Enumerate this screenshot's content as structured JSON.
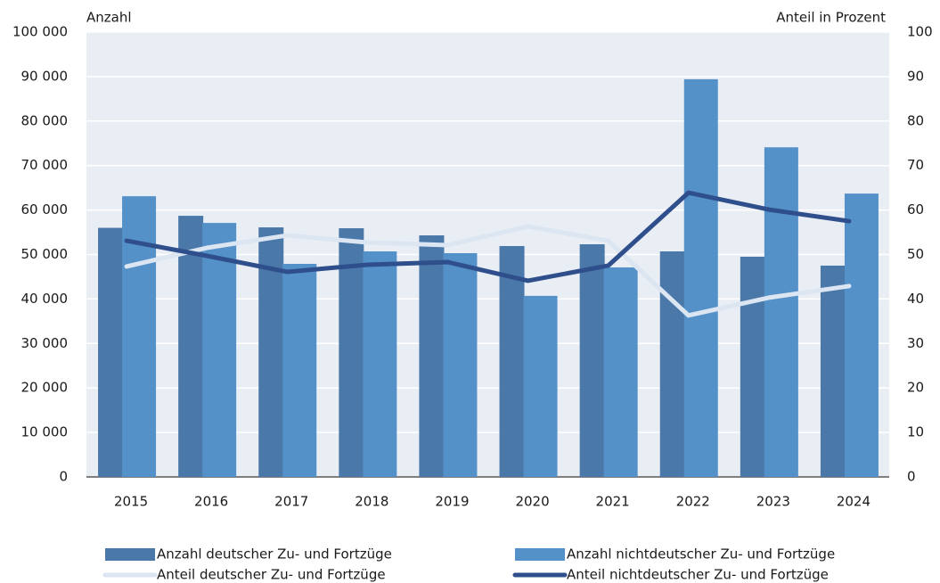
{
  "chart_data": {
    "type": "bar",
    "ylabel": "Anzahl",
    "y2label": "Anteil in Prozent",
    "categories": [
      "2015",
      "2016",
      "2017",
      "2018",
      "2019",
      "2020",
      "2021",
      "2022",
      "2023",
      "2024"
    ],
    "series": [
      {
        "name": "Anzahl deutscher Zu- und Fortzüge",
        "type": "bar",
        "color": "#4a78a8",
        "values": [
          56000,
          58700,
          56100,
          55900,
          54300,
          51900,
          52300,
          50700,
          49500,
          47500
        ]
      },
      {
        "name": "Anzahl nichtdeutscher Zu- und Fortzüge",
        "type": "bar",
        "color": "#5591c9",
        "values": [
          63100,
          57100,
          47900,
          50700,
          50300,
          40700,
          47100,
          89400,
          74100,
          63700
        ]
      },
      {
        "name": "Anteil deutscher Zu- und Fortzüge",
        "type": "line",
        "axis": "y2",
        "color": "#dce5f2",
        "values": [
          47.3,
          51.5,
          54.3,
          52.7,
          52.1,
          56.3,
          53.1,
          36.3,
          40.3,
          42.9
        ]
      },
      {
        "name": "Anteil nichtdeutscher Zu- und Fortzüge",
        "type": "line",
        "axis": "y2",
        "color": "#2f4f8c",
        "values": [
          53.1,
          49.7,
          46.1,
          47.7,
          48.3,
          44.1,
          47.5,
          63.9,
          60.1,
          57.5
        ]
      }
    ],
    "ylim": [
      0,
      100000
    ],
    "yticks": [
      0,
      {
        "value": 10000,
        "label": "10 000"
      },
      {
        "value": 20000,
        "label": "20 000"
      },
      {
        "value": 30000,
        "label": "30 000"
      },
      {
        "value": 40000,
        "label": "40 000"
      },
      {
        "value": 50000,
        "label": "50 000"
      },
      {
        "value": 60000,
        "label": "60 000"
      },
      {
        "value": 70000,
        "label": "70 000"
      },
      {
        "value": 80000,
        "label": "80 000"
      },
      {
        "value": 90000,
        "label": "90 000"
      },
      {
        "value": 100000,
        "label": "100 000"
      }
    ],
    "y2lim": [
      0,
      100
    ],
    "y2ticks": [
      0,
      10,
      20,
      30,
      40,
      50,
      60,
      70,
      80,
      90,
      100
    ],
    "grid": true
  }
}
